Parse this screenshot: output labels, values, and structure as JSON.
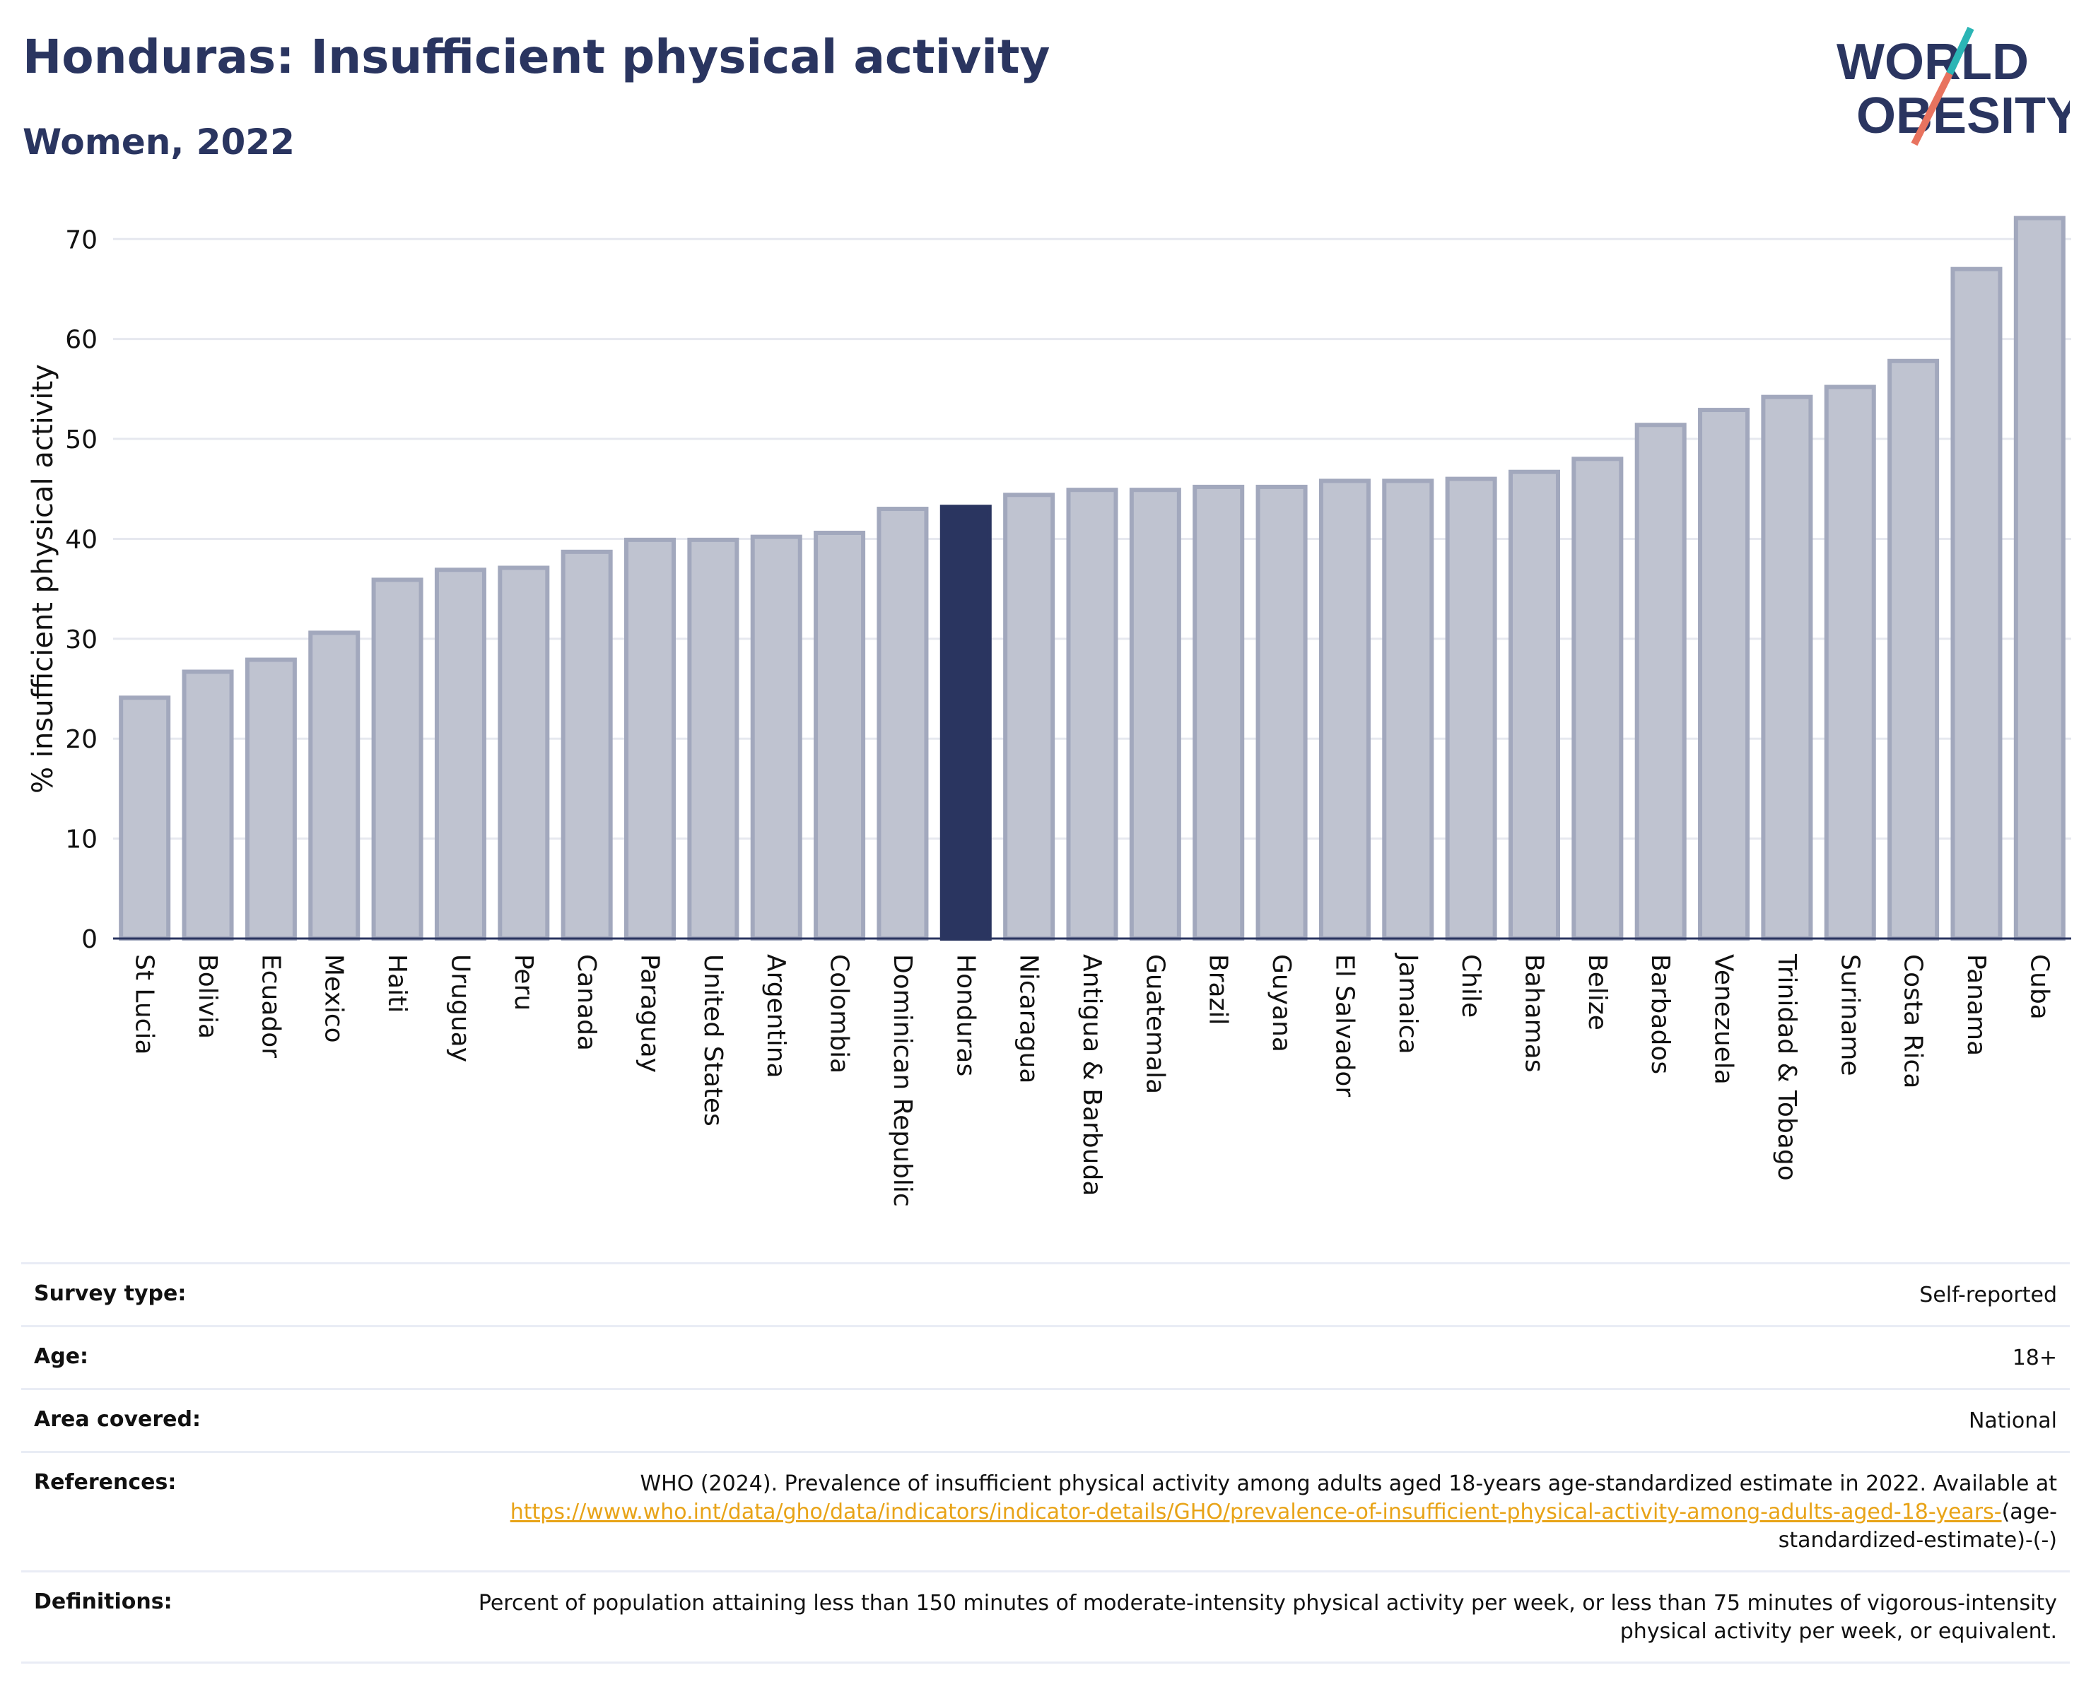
{
  "header": {
    "title": "Honduras: Insufficient physical activity",
    "subtitle": "Women, 2022"
  },
  "logo": {
    "line1": "WORLD",
    "line2": "OBESITY"
  },
  "colors": {
    "highlight": "#2a3560",
    "bar": "#bfc3d0",
    "bar_stroke": "#a2a8bd",
    "text": "#2a3560"
  },
  "chart_data": {
    "type": "bar",
    "ylabel": "% insufficient physical activity",
    "ylim": [
      0,
      72
    ],
    "yticks": [
      0,
      10,
      20,
      30,
      40,
      50,
      60,
      70
    ],
    "grid": true,
    "highlight": "Honduras",
    "categories": [
      "St Lucia",
      "Bolivia",
      "Ecuador",
      "Mexico",
      "Haiti",
      "Uruguay",
      "Peru",
      "Canada",
      "Paraguay",
      "United States",
      "Argentina",
      "Colombia",
      "Dominican Republic",
      "Honduras",
      "Nicaragua",
      "Antigua & Barbuda",
      "Guatemala",
      "Brazil",
      "Guyana",
      "El Salvador",
      "Jamaica",
      "Chile",
      "Bahamas",
      "Belize",
      "Barbados",
      "Venezuela",
      "Trinidad & Tobago",
      "Suriname",
      "Costa Rica",
      "Panama",
      "Cuba"
    ],
    "values": [
      24.1,
      26.7,
      27.9,
      30.6,
      35.9,
      36.9,
      37.1,
      38.7,
      39.9,
      39.9,
      40.2,
      40.6,
      43.0,
      43.2,
      44.4,
      44.9,
      44.9,
      45.2,
      45.2,
      45.8,
      45.8,
      46.0,
      46.7,
      48.0,
      51.4,
      52.9,
      54.2,
      55.2,
      57.8,
      67.0,
      72.1
    ]
  },
  "info": {
    "survey_type_label": "Survey type:",
    "survey_type_value": "Self-reported",
    "age_label": "Age:",
    "age_value": "18+",
    "area_label": "Area covered:",
    "area_value": "National",
    "references_label": "References:",
    "references_text": "WHO (2024). Prevalence of insufficient physical activity among adults aged 18-years age-standardized estimate in 2022. Available at",
    "references_link": "https://www.who.int/data/gho/data/indicators/indicator-details/GHO/prevalence-of-insufficient-physical-activity-among-adults-aged-18-years-",
    "references_suffix": "(age-standardized-estimate)-(-)",
    "definitions_label": "Definitions:",
    "definitions_text": "Percent of population attaining less than 150 minutes of moderate-intensity physical activity per week, or less than 75 minutes of vigorous-intensity physical activity per week, or equivalent."
  }
}
